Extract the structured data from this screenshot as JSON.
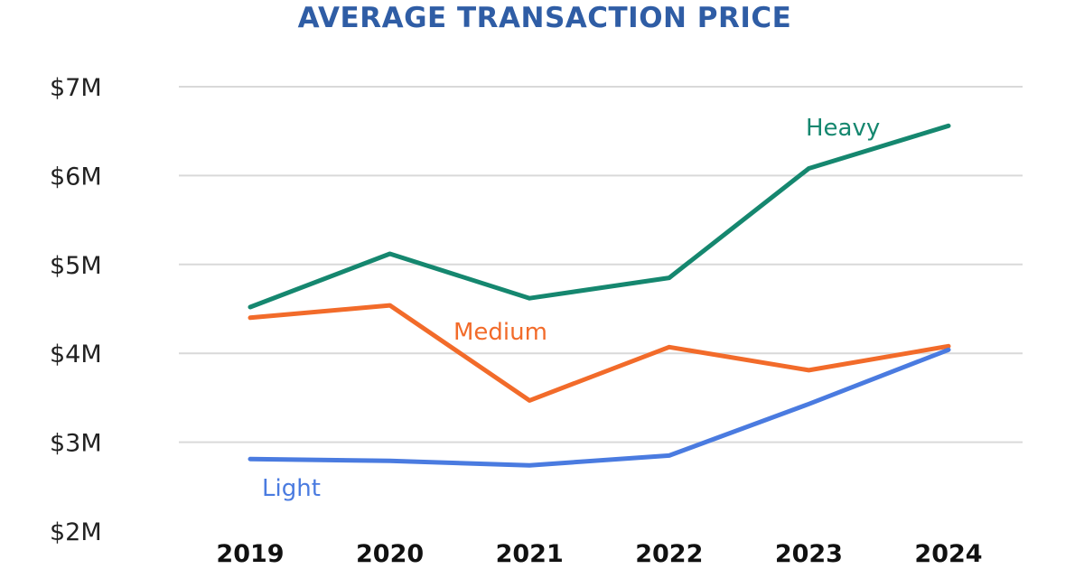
{
  "chart_data": {
    "type": "line",
    "title": "AVERAGE TRANSACTION PRICE",
    "xlabel": "",
    "ylabel": "",
    "categories": [
      "2019",
      "2020",
      "2021",
      "2022",
      "2023",
      "2024"
    ],
    "ylim": [
      2,
      7
    ],
    "yticks": [
      2,
      3,
      4,
      5,
      6,
      7
    ],
    "ytick_labels": [
      "$2M",
      "$3M",
      "$4M",
      "$5M",
      "$6M",
      "$7M"
    ],
    "grid": true,
    "legend": "none (series labeled inline)",
    "series": [
      {
        "name": "Heavy",
        "color": "#15876F",
        "values": [
          4.52,
          5.12,
          4.62,
          4.85,
          6.08,
          6.56
        ]
      },
      {
        "name": "Medium",
        "color": "#F26B2A",
        "values": [
          4.4,
          4.54,
          3.47,
          4.07,
          3.81,
          4.08
        ]
      },
      {
        "name": "Light",
        "color": "#4A7BE0",
        "values": [
          2.81,
          2.79,
          2.74,
          2.85,
          3.43,
          4.04
        ]
      }
    ],
    "title_color": "#2F5DA5"
  }
}
